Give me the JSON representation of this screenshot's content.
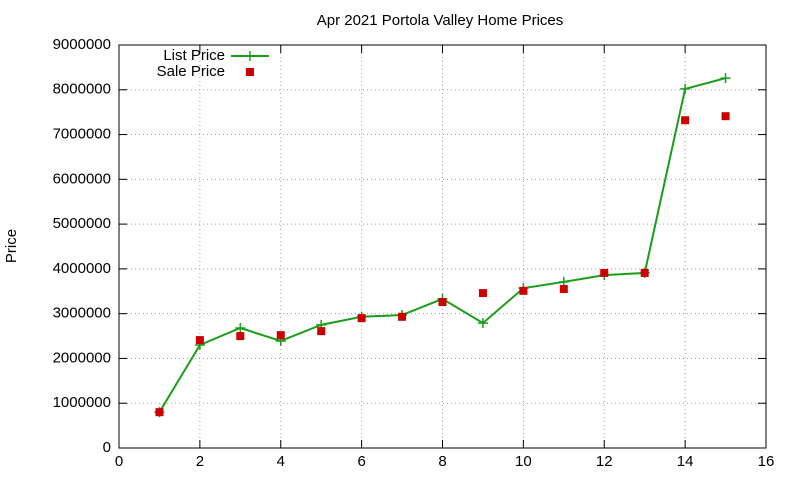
{
  "chart_data": {
    "type": "line",
    "title": "Apr 2021 Portola Valley Home Prices",
    "y_label": "Price",
    "x": [
      1,
      2,
      3,
      4,
      5,
      6,
      7,
      8,
      9,
      10,
      11,
      12,
      13,
      14,
      15
    ],
    "series": [
      {
        "name": "List Price",
        "color": "#1a9e1a",
        "style": "linespoints",
        "values": [
          800000,
          2300000,
          2680000,
          2390000,
          2750000,
          2930000,
          2970000,
          3330000,
          2790000,
          3570000,
          3710000,
          3860000,
          3910000,
          8020000,
          8260000
        ]
      },
      {
        "name": "Sale Price",
        "color": "#cc0000",
        "style": "points",
        "values": [
          800000,
          2410000,
          2500000,
          2520000,
          2610000,
          2900000,
          2930000,
          3260000,
          3460000,
          3510000,
          3550000,
          3910000,
          3910000,
          7320000,
          7410000
        ]
      }
    ],
    "xlim": [
      0,
      16
    ],
    "xticks": [
      0,
      2,
      4,
      6,
      8,
      10,
      12,
      14,
      16
    ],
    "ylim": [
      0,
      9000000
    ],
    "yticks": [
      0,
      1000000,
      2000000,
      3000000,
      4000000,
      5000000,
      6000000,
      7000000,
      8000000,
      9000000
    ],
    "grid": true,
    "legend": "top-left"
  }
}
